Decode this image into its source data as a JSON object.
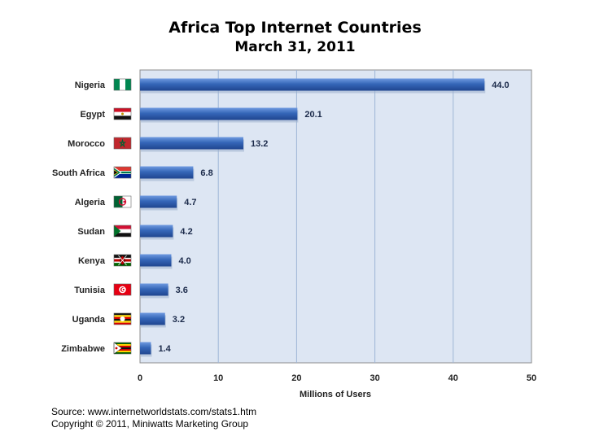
{
  "chart_data": {
    "type": "bar",
    "orientation": "horizontal",
    "title": "Africa Top Internet Countries",
    "subtitle": "March 31, 2011",
    "categories": [
      "Nigeria",
      "Egypt",
      "Morocco",
      "South Africa",
      "Algeria",
      "Sudan",
      "Kenya",
      "Tunisia",
      "Uganda",
      "Zimbabwe"
    ],
    "values": [
      44.0,
      20.1,
      13.2,
      6.8,
      4.7,
      4.2,
      4.0,
      3.6,
      3.2,
      1.4
    ],
    "value_labels": [
      "44.0",
      "20.1",
      "13.2",
      "6.8",
      "4.7",
      "4.2",
      "4.0",
      "3.6",
      "3.2",
      "1.4"
    ],
    "xlabel": "Millions of Users",
    "ylabel": "",
    "xlim": [
      0,
      50
    ],
    "xticks": [
      "0",
      "10",
      "20",
      "30",
      "40",
      "50"
    ],
    "grid": true,
    "legend": "none",
    "flag_icons": [
      "nigeria-flag-icon",
      "egypt-flag-icon",
      "morocco-flag-icon",
      "south-africa-flag-icon",
      "algeria-flag-icon",
      "sudan-flag-icon",
      "kenya-flag-icon",
      "tunisia-flag-icon",
      "uganda-flag-icon",
      "zimbabwe-flag-icon"
    ]
  },
  "colors": {
    "bar": "#3566b8",
    "bar_light": "#6f9ae0",
    "bar_dark": "#1f458f",
    "plot_background": "#dde6f3",
    "gridline": "#9fb6d6"
  },
  "footer": {
    "source": "Source: www.internetworldstats.com/stats1.htm",
    "copyright": "Copyright © 2011, Miniwatts Marketing Group"
  }
}
